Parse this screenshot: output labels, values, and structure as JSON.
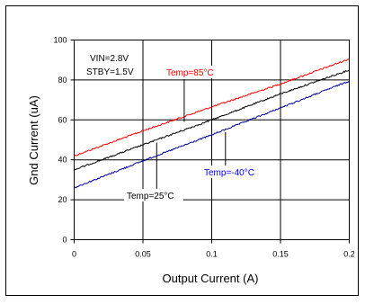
{
  "chart_data": {
    "type": "line",
    "xlabel": "Output Current (A)",
    "ylabel": "Gnd Current (uA)",
    "xlim": [
      0,
      0.2
    ],
    "ylim": [
      0,
      100
    ],
    "xticks": [
      0,
      0.05,
      0.1,
      0.15,
      0.2
    ],
    "xtick_labels": [
      "0",
      "0.05",
      "0.1",
      "0.15",
      "0.2"
    ],
    "yticks": [
      0,
      20,
      40,
      60,
      80,
      100
    ],
    "ytick_labels": [
      "0",
      "20",
      "40",
      "60",
      "80",
      "100"
    ],
    "grid": true,
    "series": [
      {
        "name": "Temp=85°C",
        "color": "#ff0000",
        "x": [
          0,
          0.05,
          0.1,
          0.15,
          0.2
        ],
        "y": [
          42,
          54.5,
          66.5,
          78,
          90.5
        ]
      },
      {
        "name": "Temp=25°C",
        "color": "#000000",
        "x": [
          0,
          0.05,
          0.1,
          0.15,
          0.2
        ],
        "y": [
          35,
          47.5,
          60,
          73,
          85
        ]
      },
      {
        "name": "Temp=-40°C",
        "color": "#0000a0",
        "x": [
          0,
          0.05,
          0.1,
          0.15,
          0.2
        ],
        "y": [
          26,
          39.5,
          52.5,
          66,
          79.5
        ]
      }
    ],
    "annotations": [
      {
        "text": "VIN=2.8V",
        "color": "#000000"
      },
      {
        "text": "STBY=1.5V",
        "color": "#000000"
      },
      {
        "text": "Temp=85°C",
        "color": "#ff0000"
      },
      {
        "text": "Temp=-40°C",
        "color": "#0000ff"
      },
      {
        "text": "Temp=25°C",
        "color": "#000000"
      }
    ]
  }
}
